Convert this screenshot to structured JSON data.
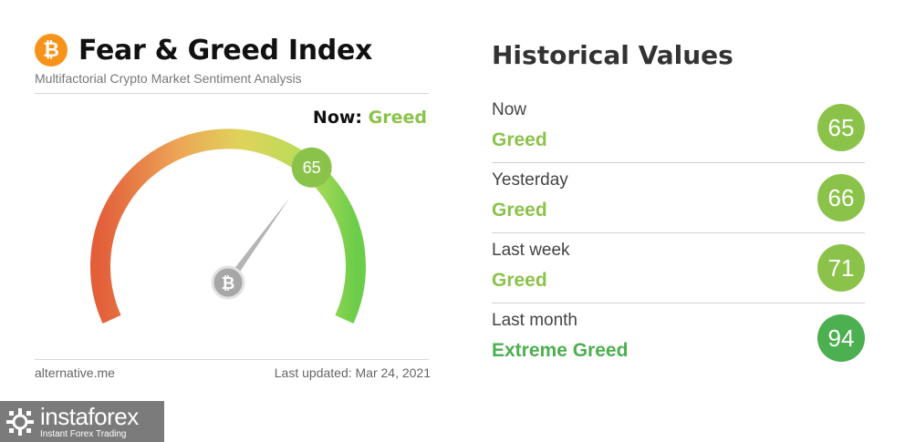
{
  "widget": {
    "logo_symbol": "₿",
    "title": "Fear & Greed Index",
    "subtitle": "Multifactorial Crypto Market Sentiment Analysis",
    "now_label": "Now:",
    "now_value": "Greed",
    "now_color": "#8bc34a",
    "gauge_value": 65,
    "gauge_badge": "65",
    "needle_icon": "bitcoin-hub-icon",
    "source": "alternative.me",
    "last_updated": "Last updated: Mar 24, 2021"
  },
  "historical": {
    "title": "Historical Values",
    "rows": [
      {
        "label": "Now",
        "classification": "Greed",
        "value": "65",
        "color": "#8bc34a"
      },
      {
        "label": "Yesterday",
        "classification": "Greed",
        "value": "66",
        "color": "#8bc34a"
      },
      {
        "label": "Last week",
        "classification": "Greed",
        "value": "71",
        "color": "#8bc34a"
      },
      {
        "label": "Last month",
        "classification": "Extreme Greed",
        "value": "94",
        "color": "#4caf50"
      }
    ]
  },
  "watermark": {
    "name": "instaforex",
    "tagline": "Instant Forex Trading",
    "icon": "instaforex-logo-icon"
  }
}
